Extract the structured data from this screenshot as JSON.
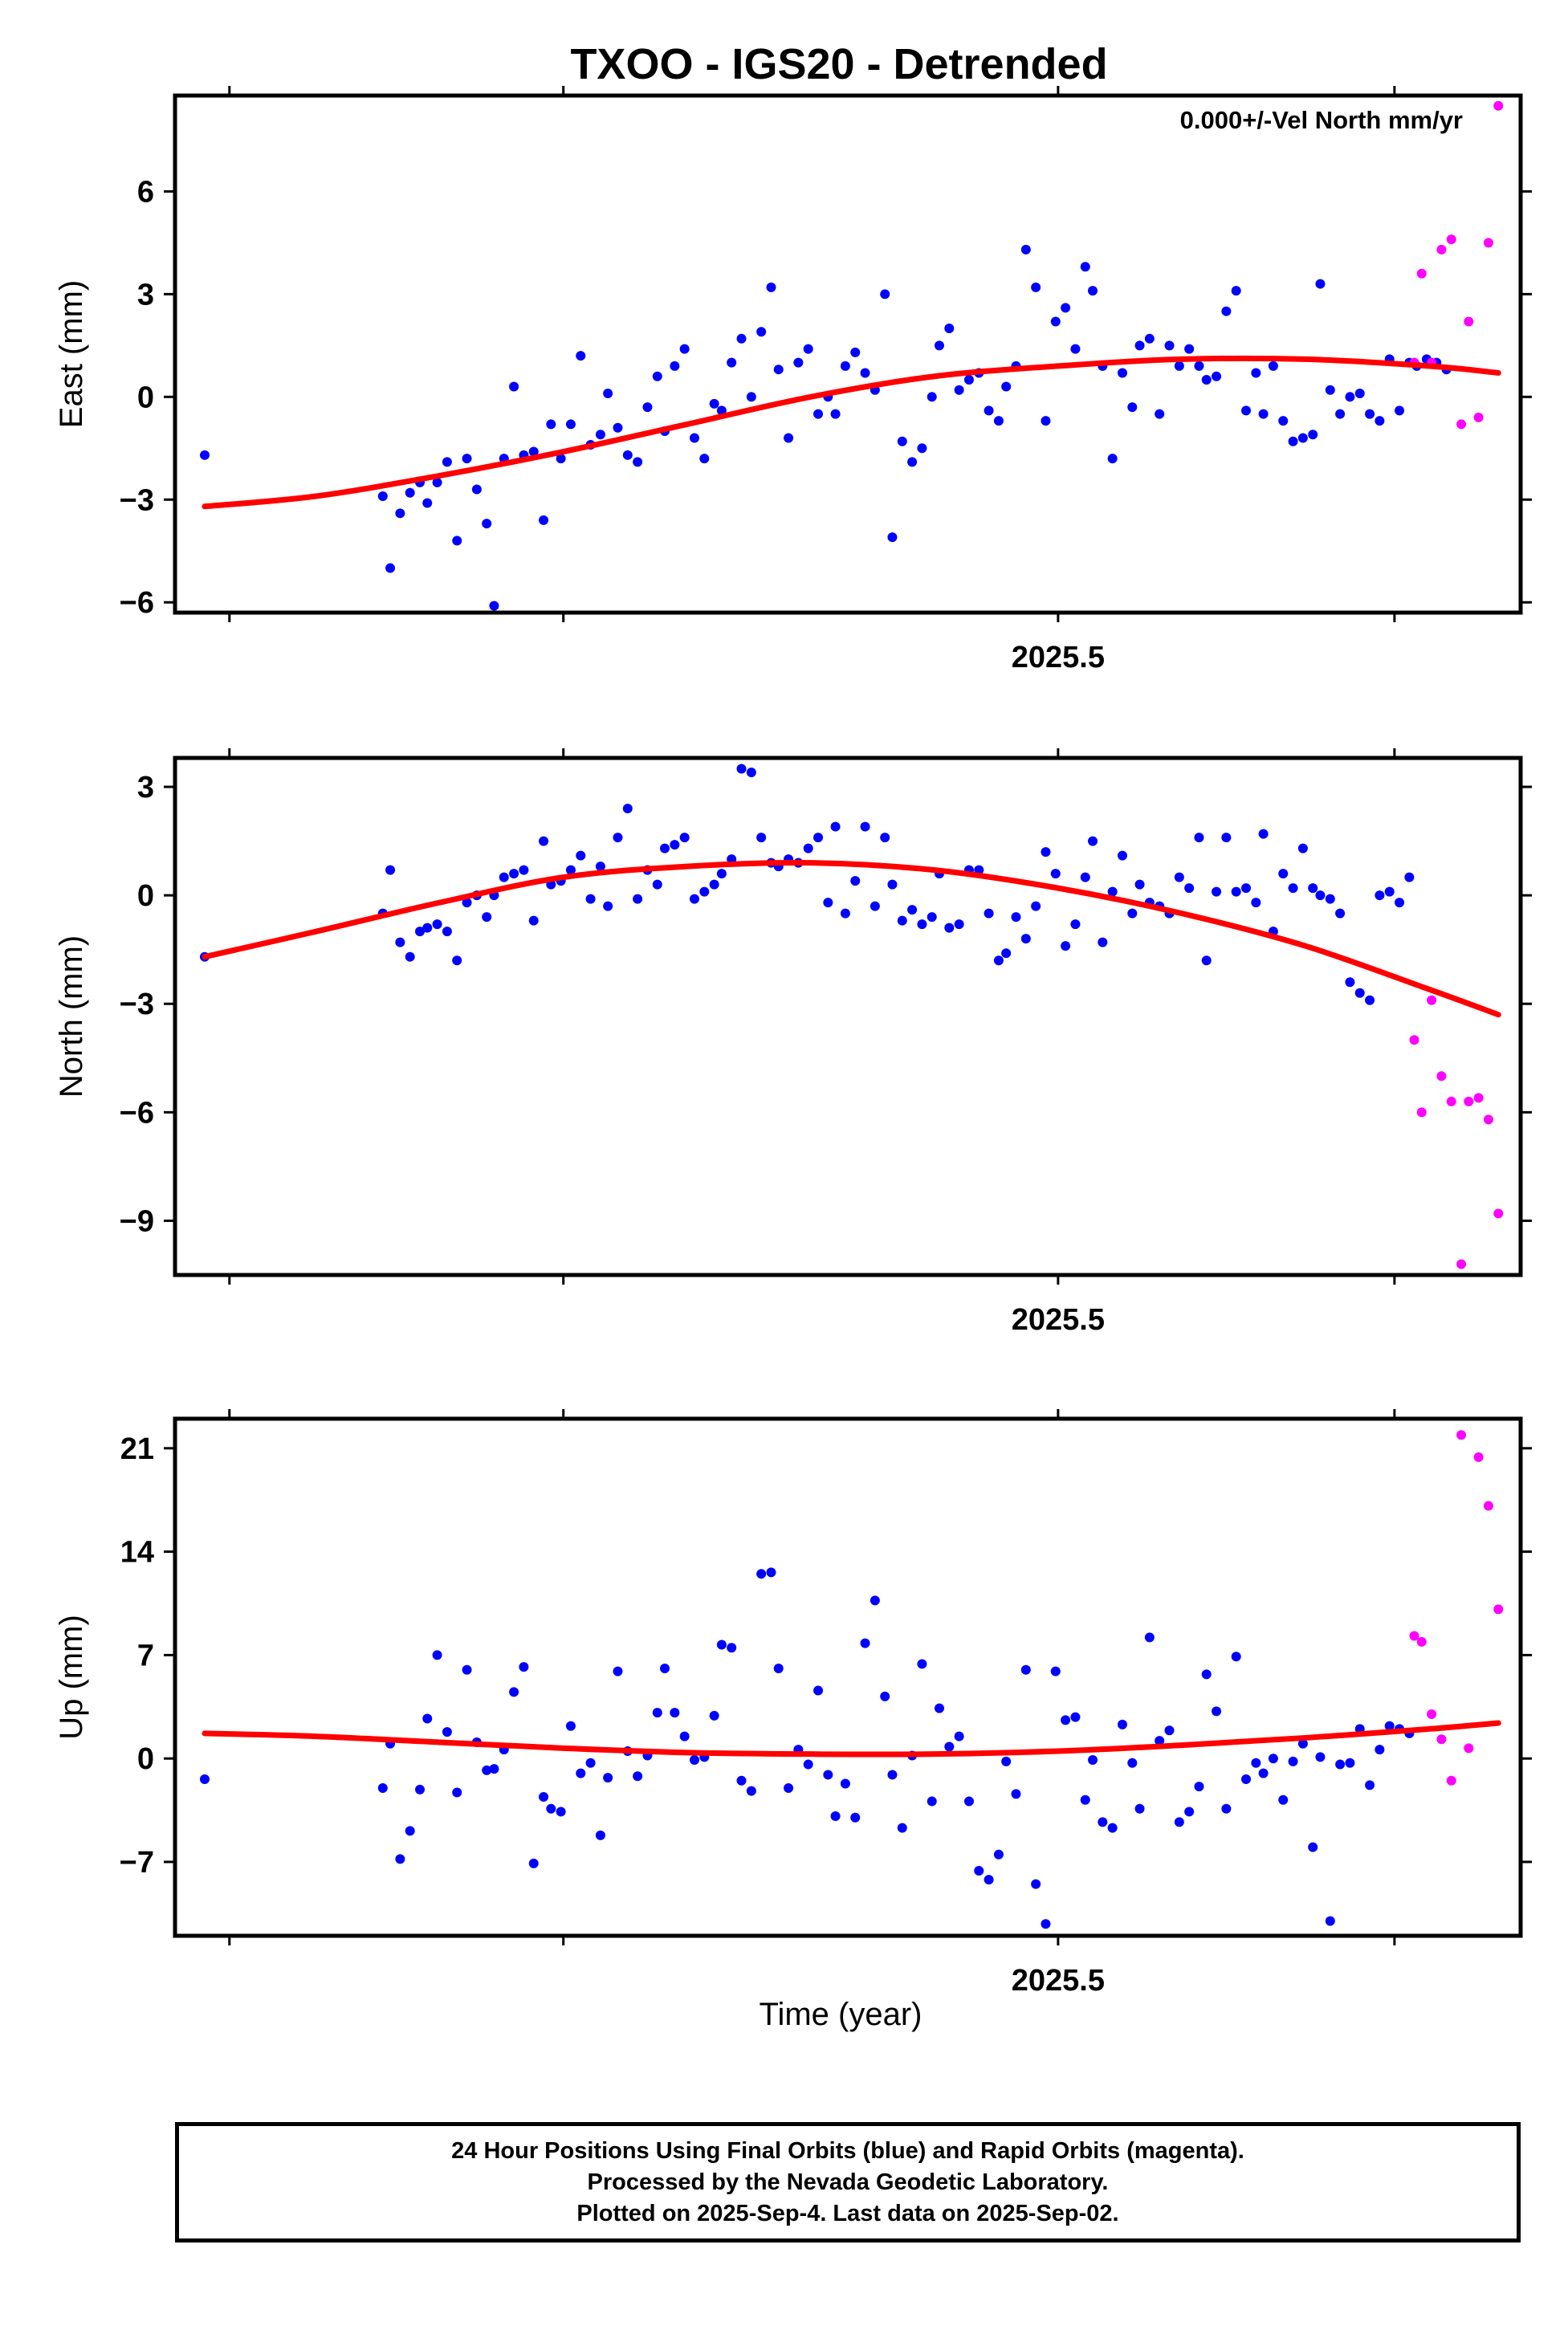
{
  "title": "TXOO - IGS20 - Detrended",
  "annotation": "0.000+/-Vel North mm/yr",
  "x_axis_label": "Time (year)",
  "colors": {
    "final": "#0000ff",
    "rapid": "#ff00ff",
    "fit": "#ff0000",
    "frame": "#000000"
  },
  "footer": {
    "line1": "24 Hour Positions Using Final Orbits (blue) and Rapid Orbits (magenta).",
    "line2": "Processed by the Nevada Geodetic Laboratory.",
    "line3": "Plotted on 2025-Sep-4. Last data on 2025-Sep-02."
  },
  "chart_data": [
    {
      "type": "scatter",
      "name": "east",
      "ylabel": "East (mm)",
      "xlim": [
        2025.143,
        2025.687
      ],
      "ylim": [
        -6.3,
        8.8
      ],
      "yticks": [
        -6,
        -3,
        0,
        3,
        6
      ],
      "xticks": [
        2025.5
      ],
      "xticks_minor": [
        2025.165,
        2025.3,
        2025.5,
        2025.636
      ],
      "final": {
        "x": [
          2025.155,
          2025.227,
          2025.23,
          2025.234,
          2025.238,
          2025.242,
          2025.245,
          2025.249,
          2025.253,
          2025.257,
          2025.261,
          2025.265,
          2025.269,
          2025.272,
          2025.276,
          2025.28,
          2025.284,
          2025.288,
          2025.292,
          2025.295,
          2025.299,
          2025.303,
          2025.307,
          2025.311,
          2025.315,
          2025.318,
          2025.322,
          2025.326,
          2025.33,
          2025.334,
          2025.338,
          2025.341,
          2025.345,
          2025.349,
          2025.353,
          2025.357,
          2025.361,
          2025.364,
          2025.368,
          2025.372,
          2025.376,
          2025.38,
          2025.384,
          2025.387,
          2025.391,
          2025.395,
          2025.399,
          2025.403,
          2025.407,
          2025.41,
          2025.414,
          2025.418,
          2025.422,
          2025.426,
          2025.43,
          2025.433,
          2025.437,
          2025.441,
          2025.445,
          2025.449,
          2025.452,
          2025.456,
          2025.46,
          2025.464,
          2025.468,
          2025.472,
          2025.476,
          2025.479,
          2025.483,
          2025.487,
          2025.491,
          2025.495,
          2025.499,
          2025.503,
          2025.507,
          2025.511,
          2025.514,
          2025.518,
          2025.522,
          2025.526,
          2025.53,
          2025.533,
          2025.537,
          2025.541,
          2025.545,
          2025.549,
          2025.553,
          2025.557,
          2025.56,
          2025.564,
          2025.568,
          2025.572,
          2025.576,
          2025.58,
          2025.583,
          2025.587,
          2025.591,
          2025.595,
          2025.599,
          2025.603,
          2025.606,
          2025.61,
          2025.614,
          2025.618,
          2025.622,
          2025.626,
          2025.63,
          2025.634,
          2025.638,
          2025.642,
          2025.645,
          2025.649,
          2025.653,
          2025.657
        ],
        "y": [
          -1.7,
          -2.9,
          -5.0,
          -3.4,
          -2.8,
          -2.5,
          -3.1,
          -2.5,
          -1.9,
          -4.2,
          -1.8,
          -2.7,
          -3.7,
          -6.1,
          -1.8,
          0.3,
          -1.7,
          -1.6,
          -3.6,
          -0.8,
          -1.8,
          -0.8,
          1.2,
          -1.4,
          -1.1,
          0.1,
          -0.9,
          -1.7,
          -1.9,
          -0.3,
          0.6,
          -1.0,
          0.9,
          1.4,
          -1.2,
          -1.8,
          -0.2,
          -0.4,
          1.0,
          1.7,
          0.0,
          1.9,
          3.2,
          0.8,
          -1.2,
          1.0,
          1.4,
          -0.5,
          0.0,
          -0.5,
          0.9,
          1.3,
          0.7,
          0.2,
          3.0,
          -4.1,
          -1.3,
          -1.9,
          -1.5,
          0.0,
          1.5,
          2.0,
          0.2,
          0.5,
          0.7,
          -0.4,
          -0.7,
          0.3,
          0.9,
          4.3,
          3.2,
          -0.7,
          2.2,
          2.6,
          1.4,
          3.8,
          3.1,
          0.9,
          -1.8,
          0.7,
          -0.3,
          1.5,
          1.7,
          -0.5,
          1.5,
          0.9,
          1.4,
          0.9,
          0.5,
          0.6,
          2.5,
          3.1,
          -0.4,
          0.7,
          -0.5,
          0.9,
          -0.7,
          -1.3,
          -1.2,
          -1.1,
          3.3,
          0.2,
          -0.5,
          0.0,
          0.1,
          -0.5,
          -0.7,
          1.1,
          -0.4,
          1.0,
          0.9,
          1.1,
          1.0,
          0.8
        ]
      },
      "rapid": {
        "x": [
          2025.644,
          2025.647,
          2025.651,
          2025.655,
          2025.659,
          2025.663,
          2025.666,
          2025.67,
          2025.674,
          2025.678
        ],
        "y": [
          1.0,
          3.6,
          1.0,
          4.3,
          4.6,
          -0.8,
          2.2,
          -0.6,
          4.5,
          8.5
        ]
      },
      "fit": {
        "x": [
          2025.155,
          2025.2,
          2025.25,
          2025.3,
          2025.35,
          2025.4,
          2025.45,
          2025.5,
          2025.55,
          2025.6,
          2025.65,
          2025.678
        ],
        "y": [
          -3.2,
          -2.9,
          -2.3,
          -1.6,
          -0.8,
          0.0,
          0.6,
          0.9,
          1.1,
          1.1,
          0.9,
          0.7
        ]
      }
    },
    {
      "type": "scatter",
      "name": "north",
      "ylabel": "North (mm)",
      "xlim": [
        2025.143,
        2025.687
      ],
      "ylim": [
        -10.5,
        3.8
      ],
      "yticks": [
        -9,
        -6,
        -3,
        0,
        3
      ],
      "xticks": [
        2025.5
      ],
      "xticks_minor": [
        2025.165,
        2025.3,
        2025.5,
        2025.636
      ],
      "final": {
        "x": [
          2025.155,
          2025.227,
          2025.23,
          2025.234,
          2025.238,
          2025.242,
          2025.245,
          2025.249,
          2025.253,
          2025.257,
          2025.261,
          2025.265,
          2025.269,
          2025.272,
          2025.276,
          2025.28,
          2025.284,
          2025.288,
          2025.292,
          2025.295,
          2025.299,
          2025.303,
          2025.307,
          2025.311,
          2025.315,
          2025.318,
          2025.322,
          2025.326,
          2025.33,
          2025.334,
          2025.338,
          2025.341,
          2025.345,
          2025.349,
          2025.353,
          2025.357,
          2025.361,
          2025.364,
          2025.368,
          2025.372,
          2025.376,
          2025.38,
          2025.384,
          2025.387,
          2025.391,
          2025.395,
          2025.399,
          2025.403,
          2025.407,
          2025.41,
          2025.414,
          2025.418,
          2025.422,
          2025.426,
          2025.43,
          2025.433,
          2025.437,
          2025.441,
          2025.445,
          2025.449,
          2025.452,
          2025.456,
          2025.46,
          2025.464,
          2025.468,
          2025.472,
          2025.476,
          2025.479,
          2025.483,
          2025.487,
          2025.491,
          2025.495,
          2025.499,
          2025.503,
          2025.507,
          2025.511,
          2025.514,
          2025.518,
          2025.522,
          2025.526,
          2025.53,
          2025.533,
          2025.537,
          2025.541,
          2025.545,
          2025.549,
          2025.553,
          2025.557,
          2025.56,
          2025.564,
          2025.568,
          2025.572,
          2025.576,
          2025.58,
          2025.583,
          2025.587,
          2025.591,
          2025.595,
          2025.599,
          2025.603,
          2025.606,
          2025.61,
          2025.614,
          2025.618,
          2025.622,
          2025.626,
          2025.63,
          2025.634,
          2025.638,
          2025.642
        ],
        "y": [
          -1.7,
          -0.5,
          0.7,
          -1.3,
          -1.7,
          -1.0,
          -0.9,
          -0.8,
          -1.0,
          -1.8,
          -0.2,
          0.0,
          -0.6,
          0.0,
          0.5,
          0.6,
          0.7,
          -0.7,
          1.5,
          0.3,
          0.4,
          0.7,
          1.1,
          -0.1,
          0.8,
          -0.3,
          1.6,
          2.4,
          -0.1,
          0.7,
          0.3,
          1.3,
          1.4,
          1.6,
          -0.1,
          0.1,
          0.3,
          0.6,
          1.0,
          3.5,
          3.4,
          1.6,
          0.9,
          0.8,
          1.0,
          0.9,
          1.3,
          1.6,
          -0.2,
          1.9,
          -0.5,
          0.4,
          1.9,
          -0.3,
          1.6,
          0.3,
          -0.7,
          -0.4,
          -0.8,
          -0.6,
          0.6,
          -0.9,
          -0.8,
          0.7,
          0.7,
          -0.5,
          -1.8,
          -1.6,
          -0.6,
          -1.2,
          -0.3,
          1.2,
          0.6,
          -1.4,
          -0.8,
          0.5,
          1.5,
          -1.3,
          0.1,
          1.1,
          -0.5,
          0.3,
          -0.2,
          -0.3,
          -0.5,
          0.5,
          0.2,
          1.6,
          -1.8,
          0.1,
          1.6,
          0.1,
          0.2,
          -0.2,
          1.7,
          -1.0,
          0.6,
          0.2,
          1.3,
          0.2,
          0.0,
          -0.1,
          -0.5,
          -2.4,
          -2.7,
          -2.9,
          0.0,
          0.1,
          -0.2,
          0.5
        ]
      },
      "rapid": {
        "x": [
          2025.644,
          2025.647,
          2025.651,
          2025.655,
          2025.659,
          2025.663,
          2025.666,
          2025.67,
          2025.674,
          2025.678
        ],
        "y": [
          -4.0,
          -6.0,
          -2.9,
          -5.0,
          -5.7,
          -10.2,
          -5.7,
          -5.6,
          -6.2,
          -8.8
        ]
      },
      "fit": {
        "x": [
          2025.155,
          2025.2,
          2025.25,
          2025.3,
          2025.35,
          2025.4,
          2025.45,
          2025.5,
          2025.55,
          2025.6,
          2025.65,
          2025.678
        ],
        "y": [
          -1.7,
          -1.0,
          -0.2,
          0.5,
          0.8,
          0.9,
          0.7,
          0.2,
          -0.5,
          -1.4,
          -2.6,
          -3.3
        ]
      }
    },
    {
      "type": "scatter",
      "name": "up",
      "ylabel": "Up (mm)",
      "xlim": [
        2025.143,
        2025.687
      ],
      "ylim": [
        -12,
        23
      ],
      "yticks": [
        -7,
        0,
        7,
        14,
        21
      ],
      "xticks": [
        2025.5
      ],
      "xticks_minor": [
        2025.165,
        2025.3,
        2025.5,
        2025.636
      ],
      "final": {
        "x": [
          2025.155,
          2025.227,
          2025.23,
          2025.234,
          2025.238,
          2025.242,
          2025.245,
          2025.249,
          2025.253,
          2025.257,
          2025.261,
          2025.265,
          2025.269,
          2025.272,
          2025.276,
          2025.28,
          2025.284,
          2025.288,
          2025.292,
          2025.295,
          2025.299,
          2025.303,
          2025.307,
          2025.311,
          2025.315,
          2025.318,
          2025.322,
          2025.326,
          2025.33,
          2025.334,
          2025.338,
          2025.341,
          2025.345,
          2025.349,
          2025.353,
          2025.357,
          2025.361,
          2025.364,
          2025.368,
          2025.372,
          2025.376,
          2025.38,
          2025.384,
          2025.387,
          2025.391,
          2025.395,
          2025.399,
          2025.403,
          2025.407,
          2025.41,
          2025.414,
          2025.418,
          2025.422,
          2025.426,
          2025.43,
          2025.433,
          2025.437,
          2025.441,
          2025.445,
          2025.449,
          2025.452,
          2025.456,
          2025.46,
          2025.464,
          2025.468,
          2025.472,
          2025.476,
          2025.479,
          2025.483,
          2025.487,
          2025.491,
          2025.495,
          2025.499,
          2025.503,
          2025.507,
          2025.511,
          2025.514,
          2025.518,
          2025.522,
          2025.526,
          2025.53,
          2025.533,
          2025.537,
          2025.541,
          2025.545,
          2025.549,
          2025.553,
          2025.557,
          2025.56,
          2025.564,
          2025.568,
          2025.572,
          2025.576,
          2025.58,
          2025.583,
          2025.587,
          2025.591,
          2025.595,
          2025.599,
          2025.603,
          2025.606,
          2025.61,
          2025.614,
          2025.618,
          2025.622,
          2025.626,
          2025.63,
          2025.634,
          2025.638,
          2025.642
        ],
        "y": [
          -1.4,
          -2.0,
          1.0,
          -6.8,
          -4.9,
          -2.1,
          2.7,
          7.0,
          1.8,
          -2.3,
          6.0,
          1.1,
          -0.8,
          -0.7,
          0.6,
          4.5,
          6.2,
          -7.1,
          -2.6,
          -3.4,
          -3.6,
          2.2,
          -1.0,
          -0.3,
          -5.2,
          -1.3,
          5.9,
          0.5,
          -1.2,
          0.2,
          3.1,
          6.1,
          3.1,
          1.5,
          -0.1,
          0.1,
          2.9,
          7.7,
          7.5,
          -1.5,
          -2.2,
          12.5,
          12.6,
          6.1,
          -2.0,
          0.6,
          -0.4,
          4.6,
          -1.1,
          -3.9,
          -1.7,
          -4.0,
          7.8,
          10.7,
          4.2,
          -1.1,
          -4.7,
          0.2,
          6.4,
          -2.9,
          3.4,
          0.8,
          1.5,
          -2.9,
          -7.6,
          -8.2,
          -6.5,
          -0.2,
          -2.4,
          6.0,
          -8.5,
          -11.2,
          5.9,
          2.6,
          2.8,
          -2.8,
          -0.1,
          -4.3,
          -4.7,
          2.3,
          -0.3,
          -3.4,
          8.2,
          1.2,
          1.9,
          -4.3,
          -3.6,
          -1.9,
          5.7,
          3.2,
          -3.4,
          6.9,
          -1.4,
          -0.3,
          -1.0,
          0.0,
          -2.8,
          -0.2,
          1.0,
          -6.0,
          0.1,
          -11.0,
          -0.4,
          -0.3,
          2.0,
          -1.8,
          0.6,
          2.2,
          2.0,
          1.7
        ]
      },
      "rapid": {
        "x": [
          2025.644,
          2025.647,
          2025.651,
          2025.655,
          2025.659,
          2025.663,
          2025.666,
          2025.67,
          2025.674,
          2025.678
        ],
        "y": [
          8.3,
          7.9,
          3.0,
          1.3,
          -1.5,
          21.9,
          0.7,
          20.4,
          17.1,
          10.1
        ]
      },
      "fit": {
        "x": [
          2025.155,
          2025.2,
          2025.25,
          2025.3,
          2025.35,
          2025.4,
          2025.45,
          2025.5,
          2025.55,
          2025.6,
          2025.65,
          2025.678
        ],
        "y": [
          1.7,
          1.5,
          1.1,
          0.7,
          0.4,
          0.3,
          0.3,
          0.5,
          0.9,
          1.4,
          2.0,
          2.4
        ]
      }
    }
  ]
}
